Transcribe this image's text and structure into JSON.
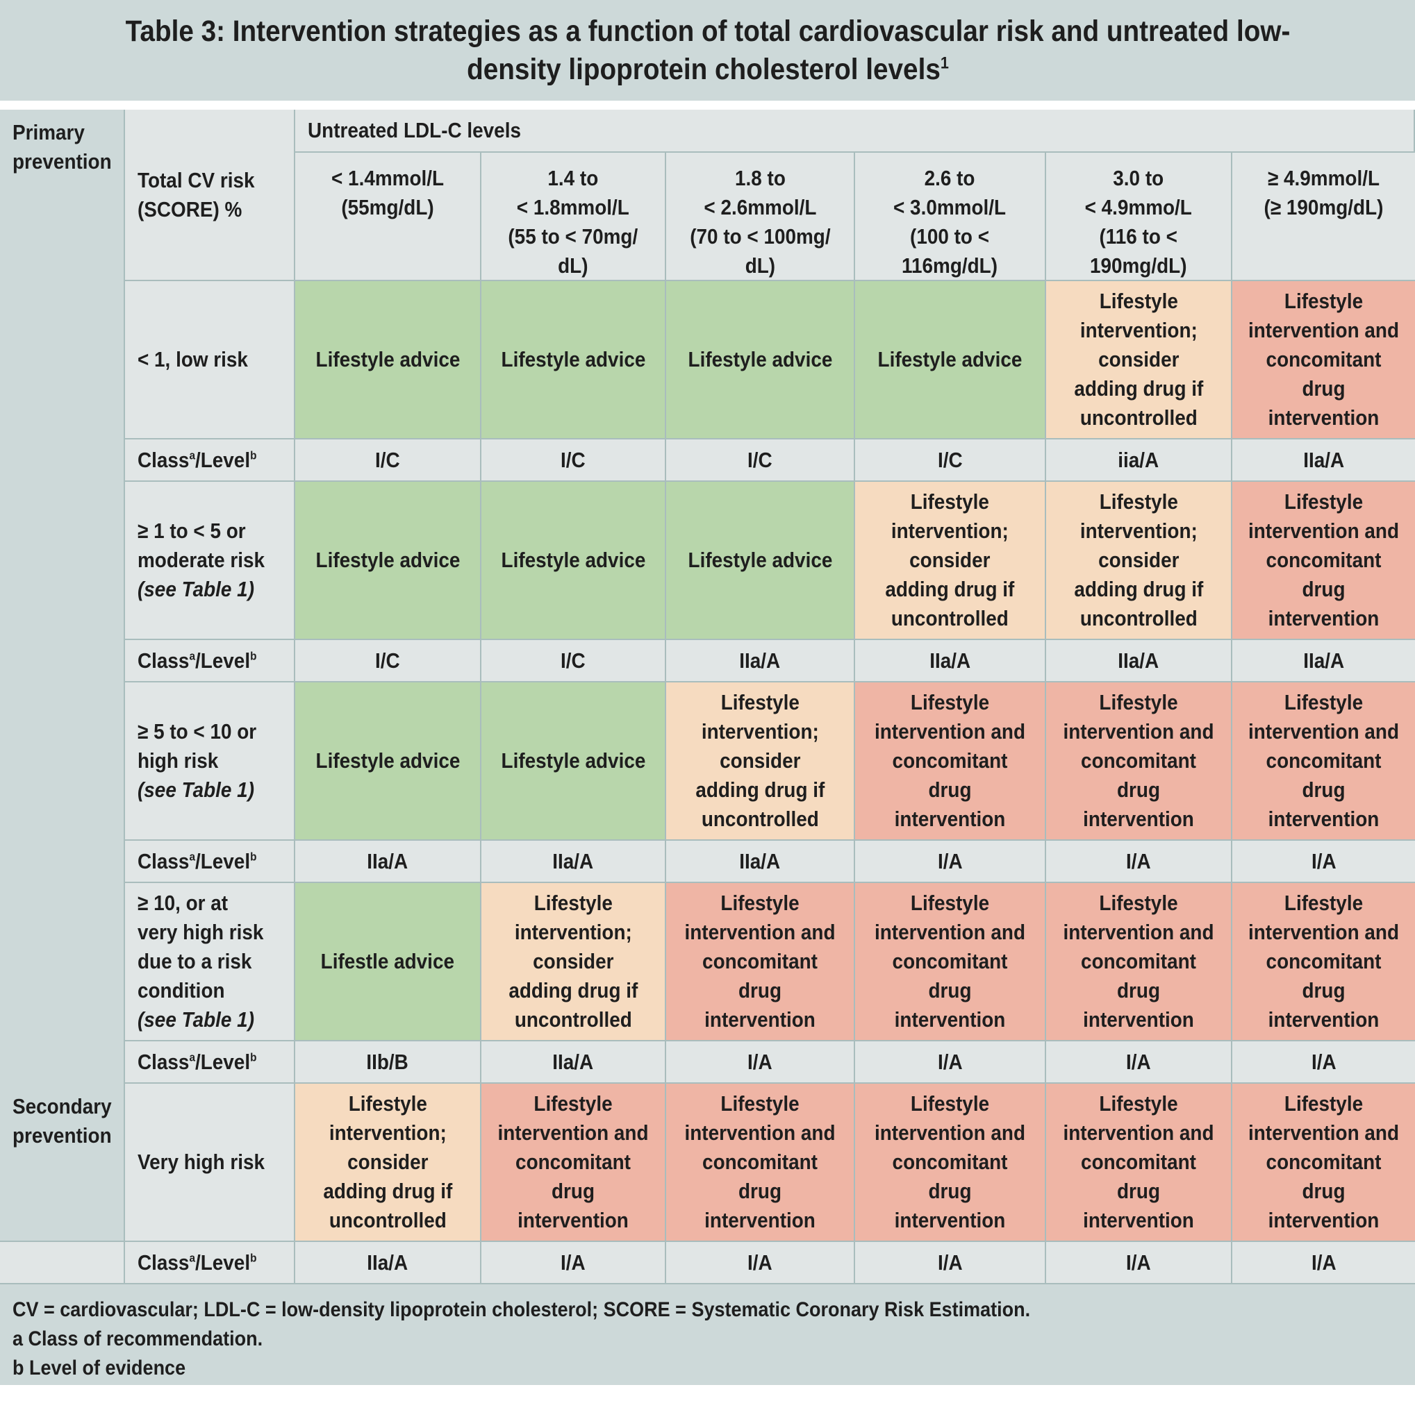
{
  "title": {
    "text": "Table 3: Intervention strategies as a function of total cardiovascular risk and untreated low-density lipoprotein cholesterol levels",
    "superscript": "1"
  },
  "colors": {
    "header_bg": "#cdd9d9",
    "light_cell_bg": "#e1e6e6",
    "green": "#b8d6ab",
    "peach": "#f6dbc0",
    "red": "#efb5a5",
    "border": "#a9bdbd"
  },
  "table": {
    "primary_label": "Primary\nprevention",
    "secondary_label": "Secondary\nprevention",
    "risk_header": "Total CV risk\n(SCORE) %",
    "ldl_header": "Untreated LDL-C levels",
    "ldl_columns": [
      "< 1.4mmol/L\n(55mg/dL)",
      "1.4 to\n< 1.8mmol/L\n(55 to < 70mg/\ndL)",
      "1.8 to\n< 2.6mmol/L\n(70 to < 100mg/\ndL)",
      "2.6 to\n< 3.0mmol/L\n(100 to <\n116mg/dL)",
      "3.0 to\n< 4.9mmo/L\n(116 to <\n190mg/dL)",
      "≥ 4.9mmol/L\n(≥ 190mg/dL)"
    ],
    "class_label": "Class",
    "class_sup": "a",
    "level_label": "/Level",
    "level_sup": "b",
    "rows": [
      {
        "risk_main": "< 1, low risk",
        "risk_note": "",
        "cells": [
          "Lifestyle advice",
          "Lifestyle advice",
          "Lifestyle advice",
          "Lifestyle advice",
          "Lifestyle\nintervention;\nconsider\nadding drug if\nuncontrolled",
          "Lifestyle\nintervention and\nconcomitant\ndrug intervention"
        ],
        "levels": [
          "green",
          "green",
          "green",
          "green",
          "peach",
          "red"
        ],
        "classes": [
          "I/C",
          "I/C",
          "I/C",
          "I/C",
          "iia/A",
          "IIa/A"
        ]
      },
      {
        "risk_main": "≥ 1 to < 5 or\nmoderate risk",
        "risk_note": "(see Table 1)",
        "cells": [
          "Lifestyle advice",
          "Lifestyle advice",
          "Lifestyle advice",
          "Lifestyle\nintervention;\nconsider\nadding drug if\nuncontrolled",
          "Lifestyle\nintervention;\nconsider\nadding drug if\nuncontrolled",
          "Lifestyle\nintervention and\nconcomitant\ndrug intervention"
        ],
        "levels": [
          "green",
          "green",
          "green",
          "peach",
          "peach",
          "red"
        ],
        "classes": [
          "I/C",
          "I/C",
          "IIa/A",
          "IIa/A",
          "IIa/A",
          "IIa/A"
        ]
      },
      {
        "risk_main": "≥ 5 to < 10 or\nhigh risk",
        "risk_note": "(see Table 1)",
        "cells": [
          "Lifestyle advice",
          "Lifestyle advice",
          "Lifestyle\nintervention;\nconsider\nadding drug if\nuncontrolled",
          "Lifestyle\nintervention and\nconcomitant drug\nintervention",
          "Lifestyle\nintervention and\nconcomitant\ndrug intervention",
          "Lifestyle\nintervention and\nconcomitant\ndrug intervention"
        ],
        "levels": [
          "green",
          "green",
          "peach",
          "red",
          "red",
          "red"
        ],
        "classes": [
          "IIa/A",
          "IIa/A",
          "IIa/A",
          "I/A",
          "I/A",
          "I/A"
        ]
      },
      {
        "risk_main": "≥ 10, or at\nvery high risk\ndue to a risk\ncondition",
        "risk_note": "(see Table 1)",
        "cells": [
          "Lifestle advice",
          "Lifestyle\nintervention;\nconsider\nadding drug if\nuncontrolled",
          "Lifestyle\nintervention and\nconcomitant drug\nintervention",
          "Lifestyle\nintervention and\nconcomitant drug\nintervention",
          "Lifestyle\nintervention and\nconcomitant\ndrug intervention",
          "Lifestyle\nintervention and\nconcomitant\ndrug intervention"
        ],
        "levels": [
          "green",
          "peach",
          "red",
          "red",
          "red",
          "red"
        ],
        "classes": [
          "IIb/B",
          "IIa/A",
          "I/A",
          "I/A",
          "I/A",
          "I/A"
        ]
      },
      {
        "risk_main": "Very high risk",
        "risk_note": "",
        "cells": [
          "Lifestyle\nintervention;\nconsider\nadding drug if\nuncontrolled",
          "Lifestyle\nintervention and\nconcomitant\ndrug intervention",
          "Lifestyle\nintervention and\nconcomitant drug\nintervention",
          "Lifestyle\nintervention and\nconcomitant drug\nintervention",
          "Lifestyle\nintervention and\nconcomitant\ndrug intervention",
          "Lifestyle\nintervention and\nconcomitant\ndrug intervention"
        ],
        "levels": [
          "peach",
          "red",
          "red",
          "red",
          "red",
          "red"
        ],
        "classes": [
          "IIa/A",
          "I/A",
          "I/A",
          "I/A",
          "I/A",
          "I/A"
        ]
      }
    ]
  },
  "footnotes": [
    "CV = cardiovascular; LDL-C = low-density lipoprotein cholesterol; SCORE = Systematic Coronary Risk Estimation.",
    "a Class of recommendation.",
    "b Level of evidence"
  ]
}
